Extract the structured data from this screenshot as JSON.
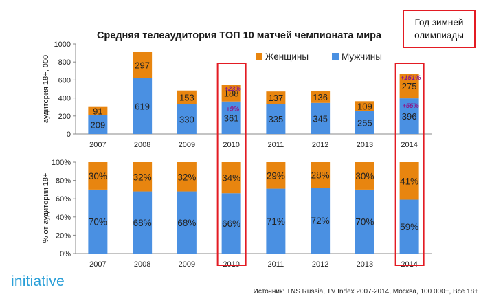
{
  "title": "Средняя телеаудитория ТОП 10 матчей чемпионата мира",
  "callout": [
    "Год зимней",
    "олимпиады"
  ],
  "logo": "initiative",
  "source": "Источник: TNS Russia, TV Index 2007-2014, Москва, 100 000+, Все 18+",
  "colors": {
    "women": "#e8850f",
    "men": "#4a90e2",
    "highlight": "#e31b23",
    "annotation": "#8b1a8b"
  },
  "chart_data": [
    {
      "type": "bar",
      "stacked": true,
      "categories": [
        "2007",
        "2008",
        "2009",
        "2010",
        "2011",
        "2012",
        "2013",
        "2014"
      ],
      "series": [
        {
          "name": "Мужчины",
          "values": [
            209,
            619,
            330,
            361,
            335,
            345,
            255,
            396
          ]
        },
        {
          "name": "Женщины",
          "values": [
            91,
            297,
            153,
            188,
            137,
            136,
            109,
            275
          ]
        }
      ],
      "ylabel": "аудитория 18+, 000",
      "ylim": [
        0,
        1000
      ],
      "yticks": [
        "0",
        "200",
        "400",
        "600",
        "800",
        "1000"
      ],
      "legend": "top-right",
      "annotations": [
        {
          "category": "2010",
          "series": "Женщины",
          "text": "+23%"
        },
        {
          "category": "2010",
          "series": "Мужчины",
          "text": "+9%"
        },
        {
          "category": "2014",
          "series": "Женщины",
          "text": "+151%"
        },
        {
          "category": "2014",
          "series": "Мужчины",
          "text": "+55%"
        }
      ],
      "highlighted": [
        "2010",
        "2014"
      ]
    },
    {
      "type": "bar",
      "stacked": true,
      "categories": [
        "2007",
        "2008",
        "2009",
        "2010",
        "2011",
        "2012",
        "2013",
        "2014"
      ],
      "series": [
        {
          "name": "Мужчины",
          "values": [
            70,
            68,
            68,
            66,
            71,
            72,
            70,
            59
          ],
          "labels": [
            "70%",
            "68%",
            "68%",
            "66%",
            "71%",
            "72%",
            "70%",
            "59%"
          ]
        },
        {
          "name": "Женщины",
          "values": [
            30,
            32,
            32,
            34,
            29,
            28,
            30,
            41
          ],
          "labels": [
            "30%",
            "32%",
            "32%",
            "34%",
            "29%",
            "28%",
            "30%",
            "41%"
          ]
        }
      ],
      "ylabel": "% от аудитории 18+",
      "ylim": [
        0,
        100
      ],
      "yticks": [
        "0%",
        "20%",
        "40%",
        "60%",
        "80%",
        "100%"
      ],
      "highlighted": [
        "2010",
        "2014"
      ]
    }
  ]
}
